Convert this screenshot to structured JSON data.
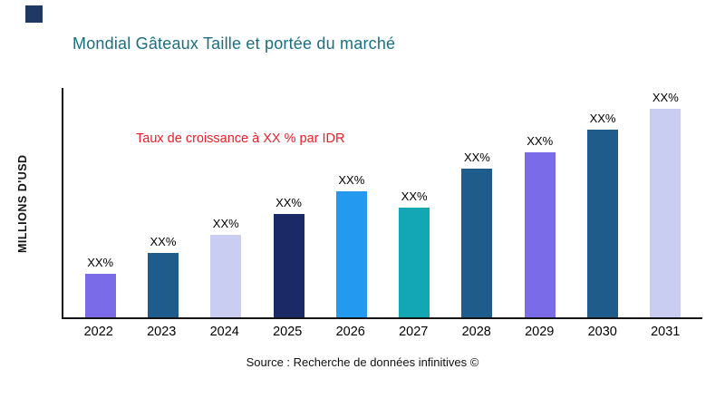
{
  "logo": {
    "color": "#203864"
  },
  "header": {
    "title": "Mondial Gâteaux Taille et portée du marché",
    "title_color": "#186F83"
  },
  "annotation": {
    "text": "Taux de croissance à XX % par IDR",
    "color": "#EE1C25"
  },
  "chart_data": {
    "type": "bar",
    "title": "Mondial Gâteaux Taille et portée du marché",
    "xlabel": "",
    "ylabel": "MILLIONS D'USD",
    "categories": [
      "2022",
      "2023",
      "2024",
      "2025",
      "2026",
      "2027",
      "2028",
      "2029",
      "2030",
      "2031"
    ],
    "values": [
      19,
      28,
      36,
      45,
      55,
      48,
      65,
      72,
      82,
      91
    ],
    "value_note": "bars labeled XX% only; heights estimated as % of plot height, ylim 0-100 relative",
    "ylim": [
      0,
      100
    ],
    "bar_labels": [
      "XX%",
      "XX%",
      "XX%",
      "XX%",
      "XX%",
      "XX%",
      "XX%",
      "XX%",
      "XX%",
      "XX%"
    ],
    "bar_colors": [
      "#7A6BE8",
      "#1F5C8B",
      "#C9CDF2",
      "#1B2A66",
      "#2499F0",
      "#12A7B2",
      "#1F5C8B",
      "#7A6BE8",
      "#1F5C8B",
      "#C9CDF2"
    ],
    "grid": false,
    "legend": false,
    "annotation": "Taux de croissance à XX % par IDR"
  },
  "footer": {
    "source": "Source : Recherche de données infinitives ©"
  }
}
